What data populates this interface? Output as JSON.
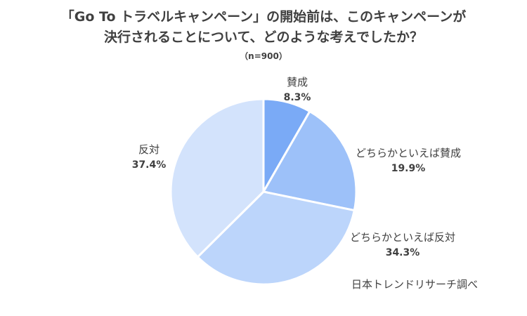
{
  "title_lines": [
    "「Go To トラベルキャンペーン」の開始前は、このキャンペーンが",
    "決行されることについて、どのような考えでしたか？"
  ],
  "subtitle": "（n=900）",
  "source": "日本トレンドリサーチ調べ",
  "chart_data": {
    "type": "pie",
    "start_angle_deg": 0,
    "direction": "clockwise",
    "slices": [
      {
        "label": "賛成",
        "value": 8.3,
        "value_label": "8.3%",
        "color": "#7aaaf6"
      },
      {
        "label": "どちらかといえば賛成",
        "value": 19.9,
        "value_label": "19.9%",
        "color": "#9dc1f9"
      },
      {
        "label": "どちらかといえば反対",
        "value": 34.3,
        "value_label": "34.3%",
        "color": "#bcd5fb"
      },
      {
        "label": "反対",
        "value": 37.4,
        "value_label": "37.4%",
        "color": "#d3e3fc"
      }
    ]
  }
}
